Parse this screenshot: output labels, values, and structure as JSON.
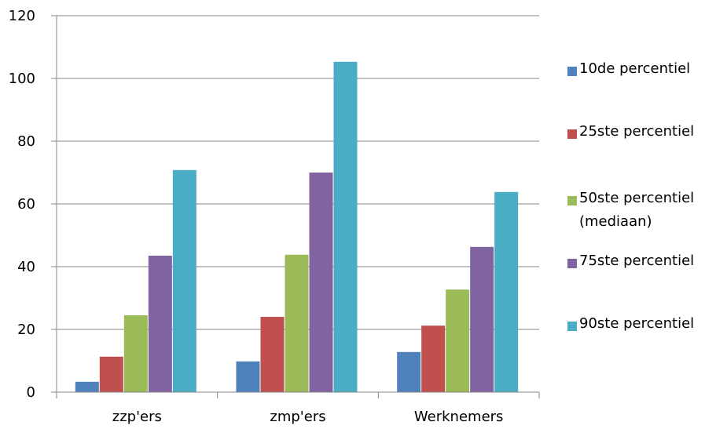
{
  "chart_data": {
    "type": "bar",
    "categories": [
      "zzp'ers",
      "zmp'ers",
      "Werknemers"
    ],
    "series": [
      {
        "name": "10de percentiel",
        "color": "#4F81BD",
        "values": [
          3.3,
          9.8,
          12.8
        ]
      },
      {
        "name": "25ste percentiel",
        "color": "#C0504D",
        "values": [
          11.3,
          24.0,
          21.2
        ]
      },
      {
        "name": "50ste percentiel (mediaan)",
        "color": "#9BBB59",
        "values": [
          24.5,
          43.8,
          32.7
        ]
      },
      {
        "name": "75ste percentiel",
        "color": "#8064A2",
        "values": [
          43.5,
          70.0,
          46.3
        ]
      },
      {
        "name": "90ste percentiel",
        "color": "#4BACC6",
        "values": [
          70.8,
          105.3,
          63.8
        ]
      }
    ],
    "yticks": [
      "0",
      "20",
      "40",
      "60",
      "80",
      "100",
      "120"
    ],
    "ylim": [
      0,
      120
    ],
    "grid": true,
    "legend": "right"
  }
}
